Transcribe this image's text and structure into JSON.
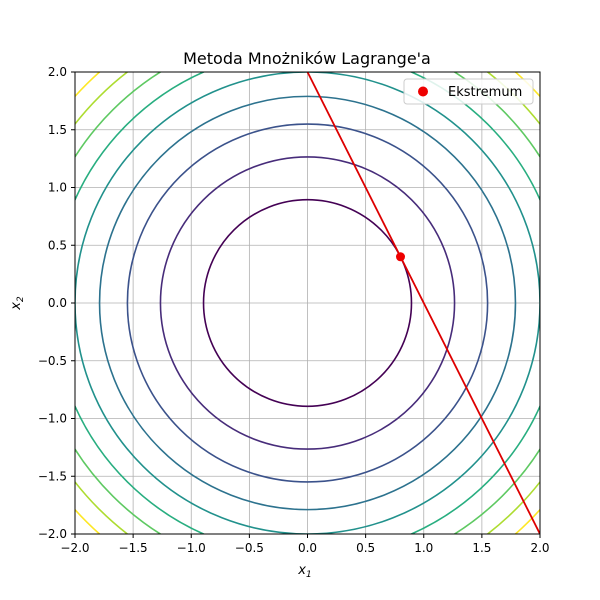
{
  "chart_data": {
    "type": "line",
    "title": "Metoda Mnożników Lagrange'a",
    "xlabel": "x",
    "xlabel_sub": "1",
    "ylabel": "x",
    "ylabel_sub": "2",
    "xlim": [
      -2.0,
      2.0
    ],
    "ylim": [
      -2.0,
      2.0
    ],
    "xticks": [
      -2.0,
      -1.5,
      -1.0,
      -0.5,
      0.0,
      0.5,
      1.0,
      1.5,
      2.0
    ],
    "yticks": [
      -2.0,
      -1.5,
      -1.0,
      -0.5,
      0.0,
      0.5,
      1.0,
      1.5,
      2.0
    ],
    "xtick_labels": [
      "−2.0",
      "−1.5",
      "−1.0",
      "−0.5",
      "0.0",
      "0.5",
      "1.0",
      "1.5",
      "2.0"
    ],
    "ytick_labels": [
      "−2.0",
      "−1.5",
      "−1.0",
      "−0.5",
      "0.0",
      "0.5",
      "1.0",
      "1.5",
      "2.0"
    ],
    "grid": true,
    "legend_position": "top-right",
    "contours": {
      "function": "x1^2 + x2^2",
      "levels": [
        0.8,
        1.6,
        2.4,
        3.2,
        4.0,
        4.8,
        5.6,
        6.4,
        7.2
      ],
      "colors": [
        "#440154",
        "#472c7a",
        "#3b528b",
        "#2c728e",
        "#21918c",
        "#28ae80",
        "#5ec962",
        "#addc30",
        "#fde725"
      ]
    },
    "constraint_line": {
      "label": "",
      "x": [
        0.0,
        2.0
      ],
      "y": [
        2.0,
        -2.0
      ],
      "color": "#dd0000"
    },
    "extremum": {
      "label": "Ekstremum",
      "x": 0.8,
      "y": 0.4,
      "color": "#ee0000"
    }
  }
}
